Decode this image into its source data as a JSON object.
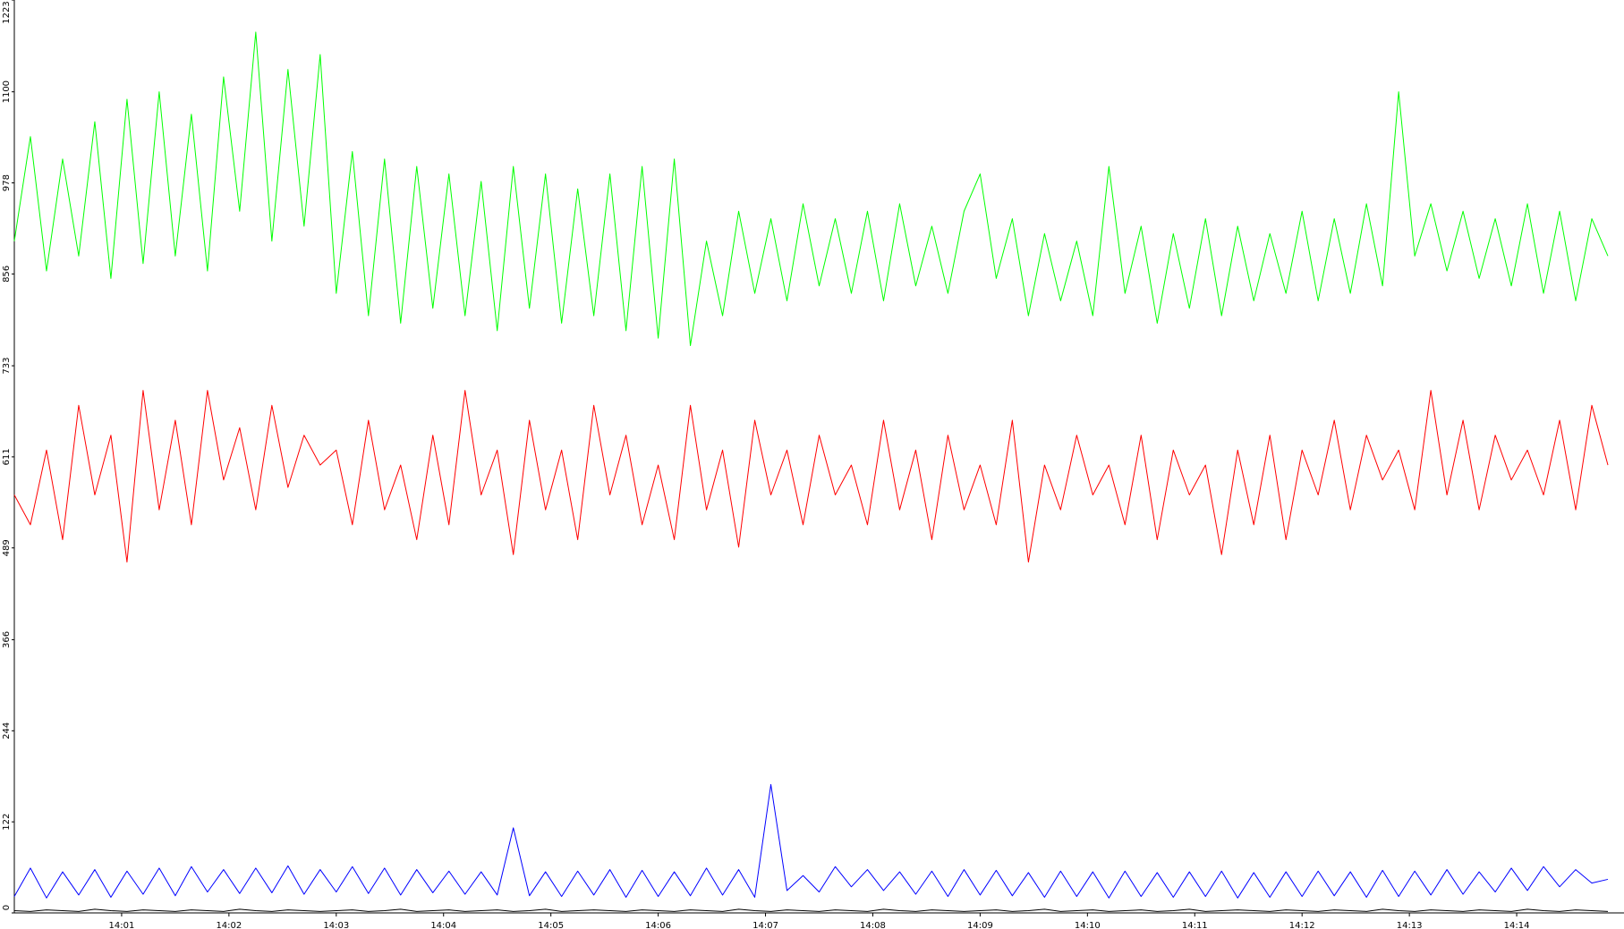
{
  "chart_data": {
    "type": "line",
    "x": [
      0,
      0.15,
      0.3,
      0.45,
      0.6,
      0.75,
      0.9,
      1.05,
      1.2,
      1.35,
      1.5,
      1.65,
      1.8,
      1.95,
      2.1,
      2.25,
      2.4,
      2.55,
      2.7,
      2.85,
      3,
      3.15,
      3.3,
      3.45,
      3.6,
      3.75,
      3.9,
      4.05,
      4.2,
      4.35,
      4.5,
      4.65,
      4.8,
      4.95,
      5.1,
      5.25,
      5.4,
      5.55,
      5.7,
      5.85,
      6,
      6.15,
      6.3,
      6.45,
      6.6,
      6.75,
      6.9,
      7.05,
      7.2,
      7.35,
      7.5,
      7.65,
      7.8,
      7.95,
      8.1,
      8.25,
      8.4,
      8.55,
      8.7,
      8.85,
      9,
      9.15,
      9.3,
      9.45,
      9.6,
      9.75,
      9.9,
      10.05,
      10.2,
      10.35,
      10.5,
      10.65,
      10.8,
      10.95,
      11.1,
      11.25,
      11.4,
      11.55,
      11.7,
      11.85,
      12,
      12.15,
      12.3,
      12.45,
      12.6,
      12.75,
      12.9,
      13.05,
      13.2,
      13.35,
      13.5,
      13.65,
      13.8,
      13.95,
      14.1,
      14.25,
      14.4,
      14.55,
      14.7,
      14.85
    ],
    "series": [
      {
        "color": "#00ff00",
        "values": [
          900,
          1040,
          860,
          1010,
          880,
          1060,
          850,
          1090,
          870,
          1100,
          880,
          1070,
          860,
          1120,
          940,
          1180,
          900,
          1130,
          920,
          1150,
          830,
          1020,
          800,
          1010,
          790,
          1000,
          810,
          990,
          800,
          980,
          780,
          1000,
          810,
          990,
          790,
          970,
          800,
          990,
          780,
          1000,
          770,
          1010,
          760,
          900,
          800,
          940,
          830,
          930,
          820,
          950,
          840,
          930,
          830,
          940,
          820,
          950,
          840,
          920,
          830,
          940,
          990,
          850,
          930,
          800,
          910,
          820,
          900,
          800,
          1000,
          830,
          920,
          790,
          910,
          810,
          930,
          800,
          920,
          820,
          910,
          830,
          940,
          820,
          930,
          830,
          950,
          840,
          1100,
          880,
          950,
          860,
          940,
          850,
          930,
          840,
          950,
          830,
          940,
          820,
          930,
          880
        ]
      },
      {
        "color": "#ff0000",
        "values": [
          560,
          520,
          620,
          500,
          680,
          560,
          640,
          470,
          700,
          540,
          660,
          520,
          700,
          580,
          650,
          540,
          680,
          570,
          640,
          600,
          620,
          520,
          660,
          540,
          600,
          500,
          640,
          520,
          700,
          560,
          620,
          480,
          660,
          540,
          620,
          500,
          680,
          560,
          640,
          520,
          600,
          500,
          680,
          540,
          620,
          490,
          660,
          560,
          620,
          520,
          640,
          560,
          600,
          520,
          660,
          540,
          620,
          500,
          640,
          540,
          600,
          520,
          660,
          470,
          600,
          540,
          640,
          560,
          600,
          520,
          640,
          500,
          620,
          560,
          600,
          480,
          620,
          520,
          640,
          500,
          620,
          560,
          660,
          540,
          640,
          580,
          620,
          540,
          700,
          560,
          660,
          540,
          640,
          580,
          620,
          560,
          660,
          540,
          680,
          600
        ]
      },
      {
        "color": "#0000ff",
        "values": [
          22,
          60,
          20,
          55,
          24,
          58,
          21,
          56,
          25,
          60,
          23,
          62,
          28,
          58,
          26,
          60,
          27,
          63,
          25,
          58,
          28,
          62,
          26,
          60,
          24,
          58,
          27,
          56,
          25,
          55,
          24,
          114,
          23,
          55,
          22,
          56,
          24,
          58,
          21,
          57,
          22,
          55,
          23,
          60,
          24,
          58,
          21,
          172,
          30,
          50,
          28,
          62,
          35,
          58,
          30,
          55,
          25,
          56,
          22,
          58,
          24,
          57,
          23,
          54,
          21,
          56,
          22,
          55,
          20,
          56,
          22,
          54,
          21,
          55,
          22,
          56,
          20,
          54,
          21,
          55,
          22,
          56,
          23,
          55,
          21,
          57,
          22,
          56,
          24,
          58,
          25,
          55,
          28,
          60,
          30,
          62,
          35,
          58,
          40,
          45
        ]
      },
      {
        "color": "#000000",
        "values": [
          3,
          2,
          4,
          3,
          2,
          5,
          3,
          2,
          4,
          3,
          2,
          4,
          3,
          2,
          5,
          3,
          2,
          4,
          3,
          2,
          3,
          4,
          2,
          3,
          5,
          2,
          3,
          4,
          2,
          3,
          4,
          2,
          3,
          5,
          2,
          3,
          4,
          3,
          2,
          4,
          3,
          2,
          4,
          3,
          2,
          5,
          3,
          2,
          4,
          3,
          2,
          4,
          3,
          2,
          5,
          3,
          2,
          4,
          3,
          2,
          3,
          4,
          2,
          3,
          5,
          2,
          3,
          4,
          2,
          3,
          4,
          2,
          3,
          5,
          2,
          3,
          4,
          3,
          2,
          4,
          3,
          2,
          4,
          3,
          2,
          5,
          3,
          2,
          4,
          3,
          2,
          4,
          3,
          2,
          5,
          3,
          2,
          4,
          3,
          2
        ]
      }
    ],
    "xlim": [
      0,
      15
    ],
    "xticks": [
      {
        "value": 1,
        "label": "14:01"
      },
      {
        "value": 2,
        "label": "14:02"
      },
      {
        "value": 3,
        "label": "14:03"
      },
      {
        "value": 4,
        "label": "14:04"
      },
      {
        "value": 5,
        "label": "14:05"
      },
      {
        "value": 6,
        "label": "14:06"
      },
      {
        "value": 7,
        "label": "14:07"
      },
      {
        "value": 8,
        "label": "14:08"
      },
      {
        "value": 9,
        "label": "14:09"
      },
      {
        "value": 10,
        "label": "14:10"
      },
      {
        "value": 11,
        "label": "14:11"
      },
      {
        "value": 12,
        "label": "14:12"
      },
      {
        "value": 13,
        "label": "14:13"
      },
      {
        "value": 14,
        "label": "14:14"
      }
    ],
    "ylim": [
      0,
      1223
    ],
    "yticks": [
      0,
      122,
      244,
      366,
      489,
      611,
      733,
      856,
      978,
      1100,
      1223
    ],
    "grid": false
  }
}
